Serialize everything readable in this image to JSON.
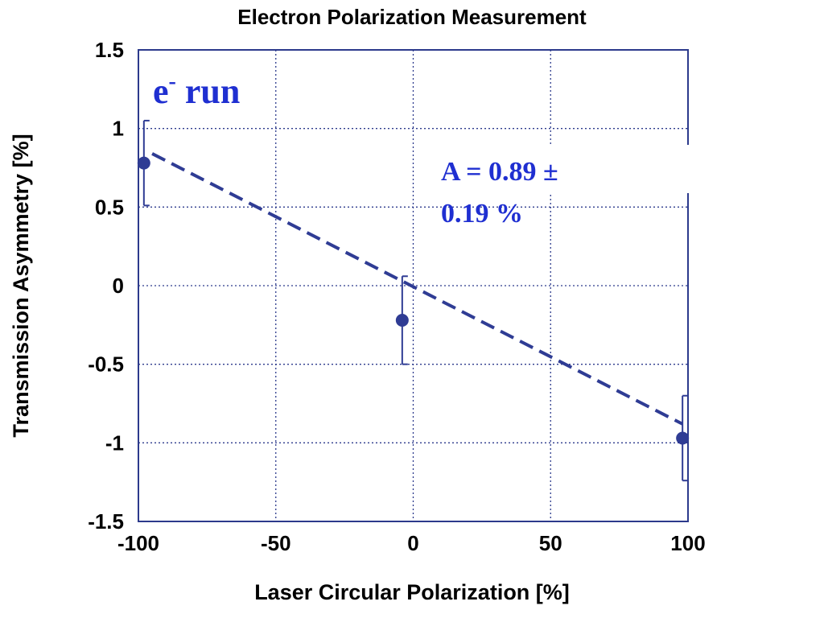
{
  "chart_data": {
    "type": "scatter",
    "title": "Electron Polarization Measurement",
    "xlabel": "Laser Circular Polarization [%]",
    "ylabel": "Transmission Asymmetry [%]",
    "xlim": [
      -100,
      100
    ],
    "ylim": [
      -1.5,
      1.5
    ],
    "x_ticks": [
      "-100",
      "-50",
      "0",
      "50",
      "100"
    ],
    "y_ticks": [
      "1.5",
      "1",
      "0.5",
      "0",
      "-0.5",
      "-1",
      "-1.5"
    ],
    "grid": true,
    "points": [
      {
        "x": -98,
        "y": 0.78,
        "yerr": 0.27
      },
      {
        "x": -4,
        "y": -0.22,
        "yerr": 0.28
      },
      {
        "x": 98,
        "y": -0.97,
        "yerr": 0.27
      }
    ],
    "fit_line": {
      "x": [
        -95,
        98
      ],
      "y": [
        0.84,
        -0.88
      ]
    },
    "annotations": {
      "run_label_main": "e",
      "run_label_sup": "-",
      "run_label_rest": " run",
      "fit_result_line1": "A = 0.89 ±",
      "fit_result_line2": "0.19 %"
    },
    "colors": {
      "markers": "#2f3c94",
      "annotation": "#1f2fd1",
      "frame": "#2c3a8c"
    }
  }
}
